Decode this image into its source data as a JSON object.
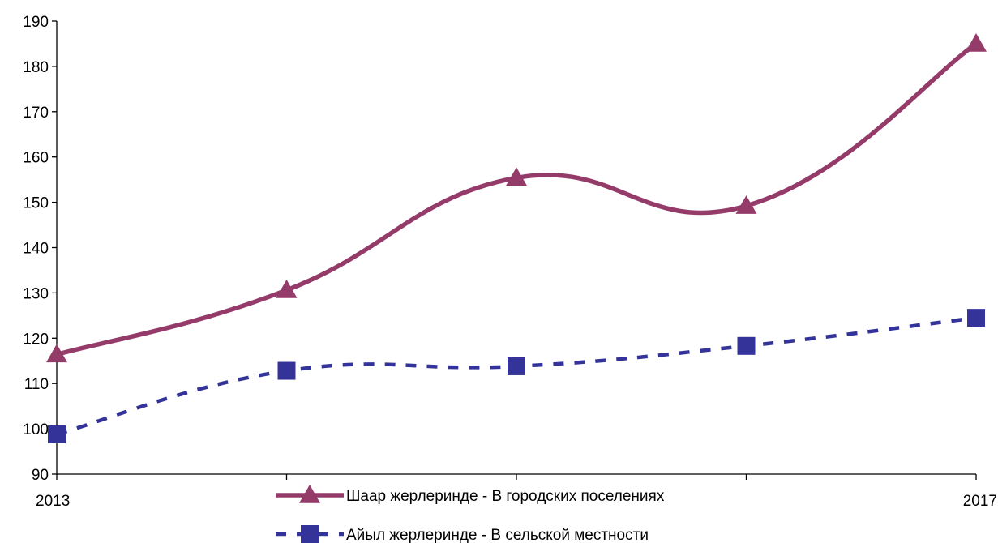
{
  "chart_data": {
    "type": "line",
    "x": [
      2013,
      2014,
      2015,
      2016,
      2017
    ],
    "x_tick_labels": [
      "2013",
      "",
      "",
      "",
      "2017"
    ],
    "ylim": [
      90,
      190
    ],
    "y_ticks": [
      90,
      100,
      110,
      120,
      130,
      140,
      150,
      160,
      170,
      180,
      190
    ],
    "grid": false,
    "legend_position": "bottom",
    "series": [
      {
        "name": "Шаар жерлеринде - В городских поселениях",
        "values": [
          116.4,
          130.6,
          155.4,
          149.2,
          185.0
        ],
        "color": "#953B6A",
        "line_style": "solid",
        "marker": "triangle"
      },
      {
        "name": "Айыл жерлеринде - В сельской местности",
        "values": [
          98.8,
          112.8,
          113.8,
          118.3,
          124.5
        ],
        "color": "#33339A",
        "line_style": "dashed",
        "marker": "square"
      }
    ]
  }
}
